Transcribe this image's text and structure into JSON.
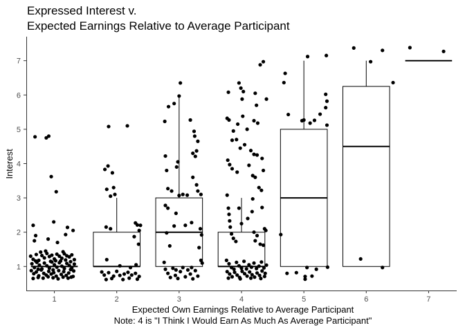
{
  "chart_data": {
    "type": "boxplot",
    "title_lines": [
      "Expressed Interest v.",
      "Expected Earnings Relative to Average Participant"
    ],
    "xlabel_lines": [
      "Expected Own Earnings Relative to Average Participant",
      "Note: 4 is \"I Think I Would Earn As Much As Average Participant\""
    ],
    "ylabel": "Interest",
    "x_ticks": [
      "1",
      "2",
      "3",
      "4",
      "5",
      "6",
      "7"
    ],
    "y_ticks": [
      "1",
      "2",
      "3",
      "4",
      "5",
      "6",
      "7"
    ],
    "xlim": [
      0.55,
      7.45
    ],
    "ylim": [
      0.3,
      7.7
    ],
    "grid": false,
    "legend": "none",
    "colors": {
      "box_line": "#000000",
      "point": "#000000",
      "axis": "#333333"
    },
    "boxes": [
      {
        "x": 1,
        "q1": 1,
        "median": 1,
        "q3": 1,
        "whisker_low": 1,
        "whisker_high": 1
      },
      {
        "x": 2,
        "q1": 1,
        "median": 1,
        "q3": 2,
        "whisker_low": 1,
        "whisker_high": 3
      },
      {
        "x": 3,
        "q1": 1,
        "median": 2,
        "q3": 3,
        "whisker_low": 1,
        "whisker_high": 6
      },
      {
        "x": 4,
        "q1": 1,
        "median": 1,
        "q3": 2,
        "whisker_low": 1,
        "whisker_high": 3
      },
      {
        "x": 5,
        "q1": 1,
        "median": 3,
        "q3": 5,
        "whisker_low": 1,
        "whisker_high": 7
      },
      {
        "x": 6,
        "q1": 1,
        "median": 4.5,
        "q3": 6.25,
        "whisker_low": 1,
        "whisker_high": 7
      },
      {
        "x": 7,
        "q1": 7,
        "median": 7,
        "q3": 7,
        "whisker_low": 7,
        "whisker_high": 7
      }
    ],
    "points": [
      [
        0.69,
        4.78
      ],
      [
        0.87,
        4.75
      ],
      [
        0.91,
        4.8
      ],
      [
        0.95,
        3.62
      ],
      [
        1.03,
        3.18
      ],
      [
        0.66,
        2.2
      ],
      [
        0.7,
        1.9
      ],
      [
        0.99,
        2.3
      ],
      [
        1.21,
        2.14
      ],
      [
        1.18,
        1.93
      ],
      [
        1.3,
        2.05
      ],
      [
        1.05,
        1.7
      ],
      [
        0.68,
        1.75
      ],
      [
        0.9,
        1.8
      ],
      [
        0.62,
        1.3
      ],
      [
        0.66,
        1.21
      ],
      [
        0.71,
        1.35
      ],
      [
        0.75,
        1.18
      ],
      [
        0.8,
        1.32
      ],
      [
        0.84,
        1.25
      ],
      [
        0.88,
        1.38
      ],
      [
        0.92,
        1.29
      ],
      [
        0.96,
        1.33
      ],
      [
        1.0,
        1.22
      ],
      [
        1.04,
        1.36
      ],
      [
        1.08,
        1.3
      ],
      [
        1.12,
        1.24
      ],
      [
        1.16,
        1.37
      ],
      [
        1.2,
        1.31
      ],
      [
        1.24,
        1.28
      ],
      [
        1.28,
        1.34
      ],
      [
        1.32,
        1.2
      ],
      [
        0.64,
        1.08
      ],
      [
        0.68,
        0.97
      ],
      [
        0.72,
        1.12
      ],
      [
        0.76,
        1.04
      ],
      [
        0.8,
        0.93
      ],
      [
        0.84,
        1.1
      ],
      [
        0.88,
        1.02
      ],
      [
        0.92,
        0.95
      ],
      [
        0.96,
        1.13
      ],
      [
        1.0,
        1.05
      ],
      [
        1.04,
        0.98
      ],
      [
        1.08,
        1.11
      ],
      [
        1.12,
        1.01
      ],
      [
        1.16,
        0.94
      ],
      [
        1.2,
        1.09
      ],
      [
        1.24,
        1.03
      ],
      [
        1.28,
        0.96
      ],
      [
        1.32,
        1.07
      ],
      [
        0.63,
        0.88
      ],
      [
        0.67,
        0.79
      ],
      [
        0.71,
        0.84
      ],
      [
        0.75,
        0.73
      ],
      [
        0.79,
        0.9
      ],
      [
        0.83,
        0.8
      ],
      [
        0.87,
        0.75
      ],
      [
        0.91,
        0.86
      ],
      [
        0.95,
        0.78
      ],
      [
        0.99,
        0.82
      ],
      [
        1.03,
        0.72
      ],
      [
        1.07,
        0.88
      ],
      [
        1.11,
        0.77
      ],
      [
        1.15,
        0.85
      ],
      [
        1.19,
        0.74
      ],
      [
        1.23,
        0.81
      ],
      [
        1.27,
        0.69
      ],
      [
        1.31,
        0.87
      ],
      [
        0.66,
        0.65
      ],
      [
        0.74,
        0.68
      ],
      [
        0.82,
        0.66
      ],
      [
        0.9,
        0.7
      ],
      [
        0.98,
        0.67
      ],
      [
        1.06,
        0.64
      ],
      [
        1.14,
        0.69
      ],
      [
        1.22,
        0.66
      ],
      [
        1.3,
        0.71
      ],
      [
        0.78,
        1.42
      ],
      [
        0.86,
        1.45
      ],
      [
        0.94,
        1.15
      ],
      [
        1.02,
        1.17
      ],
      [
        1.1,
        1.16
      ],
      [
        1.18,
        1.19
      ],
      [
        1.26,
        1.14
      ],
      [
        0.7,
        1.16
      ],
      [
        1.14,
        1.43
      ],
      [
        0.98,
        0.9
      ],
      [
        1.26,
        0.91
      ],
      [
        0.74,
        0.92
      ],
      [
        1.87,
        5.08
      ],
      [
        2.17,
        5.1
      ],
      [
        1.81,
        3.83
      ],
      [
        1.86,
        3.93
      ],
      [
        1.93,
        3.73
      ],
      [
        1.95,
        3.3
      ],
      [
        1.84,
        3.25
      ],
      [
        1.9,
        3.05
      ],
      [
        1.97,
        3.1
      ],
      [
        1.83,
        2.15
      ],
      [
        1.9,
        2.1
      ],
      [
        2.3,
        2.27
      ],
      [
        2.33,
        2.21
      ],
      [
        2.36,
        2.05
      ],
      [
        2.28,
        1.87
      ],
      [
        2.35,
        1.65
      ],
      [
        2.38,
        2.2
      ],
      [
        1.76,
        0.84
      ],
      [
        1.8,
        0.75
      ],
      [
        1.83,
        0.62
      ],
      [
        1.87,
        0.82
      ],
      [
        1.92,
        0.65
      ],
      [
        1.95,
        0.72
      ],
      [
        2.0,
        0.86
      ],
      [
        2.05,
        0.74
      ],
      [
        2.1,
        0.62
      ],
      [
        2.12,
        0.78
      ],
      [
        2.18,
        0.83
      ],
      [
        2.2,
        0.66
      ],
      [
        2.24,
        0.75
      ],
      [
        2.3,
        0.8
      ],
      [
        2.33,
        0.63
      ],
      [
        2.36,
        0.71
      ],
      [
        2.05,
        1.02
      ],
      [
        2.22,
        0.97
      ],
      [
        2.31,
        1.05
      ],
      [
        1.84,
        1.2
      ],
      [
        3.02,
        6.35
      ],
      [
        3.0,
        5.97
      ],
      [
        2.83,
        5.66
      ],
      [
        2.92,
        5.75
      ],
      [
        2.77,
        5.23
      ],
      [
        3.18,
        5.27
      ],
      [
        3.24,
        4.94
      ],
      [
        3.25,
        4.8
      ],
      [
        3.3,
        4.65
      ],
      [
        3.28,
        4.37
      ],
      [
        3.26,
        4.21
      ],
      [
        3.22,
        4.3
      ],
      [
        2.78,
        4.22
      ],
      [
        2.8,
        3.8
      ],
      [
        2.82,
        3.27
      ],
      [
        2.88,
        3.2
      ],
      [
        2.98,
        4.05
      ],
      [
        2.96,
        3.9
      ],
      [
        3.0,
        3.07
      ],
      [
        3.06,
        3.1
      ],
      [
        3.13,
        3.08
      ],
      [
        3.22,
        3.6
      ],
      [
        3.28,
        3.38
      ],
      [
        3.3,
        3.2
      ],
      [
        3.35,
        3.1
      ],
      [
        2.78,
        2.78
      ],
      [
        2.82,
        2.7
      ],
      [
        2.95,
        2.55
      ],
      [
        2.92,
        2.18
      ],
      [
        3.1,
        2.2
      ],
      [
        3.2,
        2.28
      ],
      [
        3.34,
        2.1
      ],
      [
        2.8,
        1.98
      ],
      [
        3.36,
        1.92
      ],
      [
        2.85,
        1.6
      ],
      [
        3.32,
        1.55
      ],
      [
        2.76,
        1.12
      ],
      [
        2.78,
        0.92
      ],
      [
        2.82,
        0.8
      ],
      [
        2.86,
        0.68
      ],
      [
        2.9,
        0.95
      ],
      [
        2.94,
        0.74
      ],
      [
        2.98,
        0.65
      ],
      [
        3.02,
        0.85
      ],
      [
        3.06,
        0.97
      ],
      [
        3.1,
        0.7
      ],
      [
        3.14,
        0.9
      ],
      [
        3.18,
        0.78
      ],
      [
        3.22,
        0.64
      ],
      [
        3.26,
        0.88
      ],
      [
        3.3,
        0.72
      ],
      [
        3.35,
        1.18
      ],
      [
        3.37,
        1.1
      ],
      [
        2.95,
        0.9
      ],
      [
        3.2,
        0.97
      ],
      [
        3.79,
        6.08
      ],
      [
        3.96,
        6.35
      ],
      [
        3.99,
        6.2
      ],
      [
        4.03,
        6.1
      ],
      [
        4.3,
        6.88
      ],
      [
        4.35,
        6.97
      ],
      [
        4.4,
        5.88
      ],
      [
        4.22,
        6.05
      ],
      [
        3.77,
        5.32
      ],
      [
        3.8,
        5.27
      ],
      [
        3.94,
        5.15
      ],
      [
        4.02,
        5.38
      ],
      [
        4.09,
        5.0
      ],
      [
        4.24,
        5.7
      ],
      [
        4.2,
        5.25
      ],
      [
        4.26,
        5.18
      ],
      [
        4.01,
        5.88
      ],
      [
        3.87,
        4.95
      ],
      [
        3.85,
        4.68
      ],
      [
        3.92,
        4.7
      ],
      [
        3.98,
        4.45
      ],
      [
        4.05,
        4.55
      ],
      [
        4.15,
        4.38
      ],
      [
        4.25,
        4.25
      ],
      [
        4.33,
        4.15
      ],
      [
        3.78,
        4.1
      ],
      [
        3.81,
        3.97
      ],
      [
        3.85,
        3.85
      ],
      [
        3.93,
        3.75
      ],
      [
        4.12,
        3.95
      ],
      [
        4.18,
        3.65
      ],
      [
        4.22,
        3.6
      ],
      [
        4.28,
        3.3
      ],
      [
        4.32,
        3.22
      ],
      [
        4.35,
        3.8
      ],
      [
        4.2,
        4.27
      ],
      [
        3.77,
        3.08
      ],
      [
        3.79,
        2.7
      ],
      [
        3.8,
        2.52
      ],
      [
        3.81,
        2.33
      ],
      [
        3.82,
        2.15
      ],
      [
        3.84,
        1.95
      ],
      [
        3.87,
        1.82
      ],
      [
        3.91,
        1.73
      ],
      [
        4.0,
        2.25
      ],
      [
        4.1,
        2.4
      ],
      [
        4.17,
        2.6
      ],
      [
        4.2,
        2.0
      ],
      [
        4.22,
        1.75
      ],
      [
        4.25,
        1.9
      ],
      [
        4.3,
        1.65
      ],
      [
        4.35,
        1.62
      ],
      [
        4.37,
        2.1
      ],
      [
        4.39,
        2.05
      ],
      [
        4.18,
        2.97
      ],
      [
        4.33,
        2.72
      ],
      [
        3.96,
        2.7
      ],
      [
        3.76,
        1.18
      ],
      [
        3.8,
        1.08
      ],
      [
        3.84,
        0.97
      ],
      [
        3.88,
        0.92
      ],
      [
        3.92,
        1.12
      ],
      [
        3.96,
        1.02
      ],
      [
        4.0,
        0.95
      ],
      [
        4.04,
        1.15
      ],
      [
        4.08,
        0.93
      ],
      [
        4.12,
        1.05
      ],
      [
        4.16,
        0.98
      ],
      [
        4.2,
        1.1
      ],
      [
        4.24,
        0.94
      ],
      [
        4.28,
        1.01
      ],
      [
        4.32,
        1.13
      ],
      [
        4.36,
        0.96
      ],
      [
        4.4,
        1.04
      ],
      [
        3.77,
        0.85
      ],
      [
        3.81,
        0.78
      ],
      [
        3.85,
        0.7
      ],
      [
        3.89,
        0.83
      ],
      [
        3.93,
        0.75
      ],
      [
        3.97,
        0.68
      ],
      [
        4.01,
        0.86
      ],
      [
        4.05,
        0.79
      ],
      [
        4.09,
        0.72
      ],
      [
        4.13,
        0.84
      ],
      [
        4.17,
        0.76
      ],
      [
        4.21,
        0.69
      ],
      [
        4.25,
        0.81
      ],
      [
        4.29,
        0.74
      ],
      [
        4.33,
        0.87
      ],
      [
        4.37,
        0.71
      ],
      [
        4.38,
        0.8
      ],
      [
        3.79,
        0.66
      ],
      [
        3.98,
        0.64
      ],
      [
        4.15,
        0.66
      ],
      [
        4.31,
        0.65
      ],
      [
        4.7,
        6.63
      ],
      [
        4.68,
        6.36
      ],
      [
        5.06,
        7.12
      ],
      [
        5.36,
        7.15
      ],
      [
        5.35,
        6.02
      ],
      [
        5.37,
        5.82
      ],
      [
        5.35,
        5.63
      ],
      [
        5.26,
        5.44
      ],
      [
        5.17,
        5.26
      ],
      [
        5.37,
        5.12
      ],
      [
        5.1,
        5.18
      ],
      [
        4.97,
        5.25
      ],
      [
        4.75,
        5.43
      ],
      [
        5.0,
        5.27
      ],
      [
        4.63,
        1.93
      ],
      [
        4.73,
        0.8
      ],
      [
        4.88,
        0.82
      ],
      [
        5.02,
        0.71
      ],
      [
        5.02,
        0.63
      ],
      [
        5.13,
        0.72
      ],
      [
        5.2,
        0.92
      ],
      [
        5.05,
        0.97
      ],
      [
        5.38,
        0.98
      ],
      [
        5.8,
        7.37
      ],
      [
        6.07,
        6.97
      ],
      [
        6.26,
        7.3
      ],
      [
        6.43,
        6.36
      ],
      [
        5.91,
        1.22
      ],
      [
        6.26,
        0.97
      ],
      [
        6.7,
        7.38
      ],
      [
        7.24,
        7.27
      ]
    ]
  }
}
